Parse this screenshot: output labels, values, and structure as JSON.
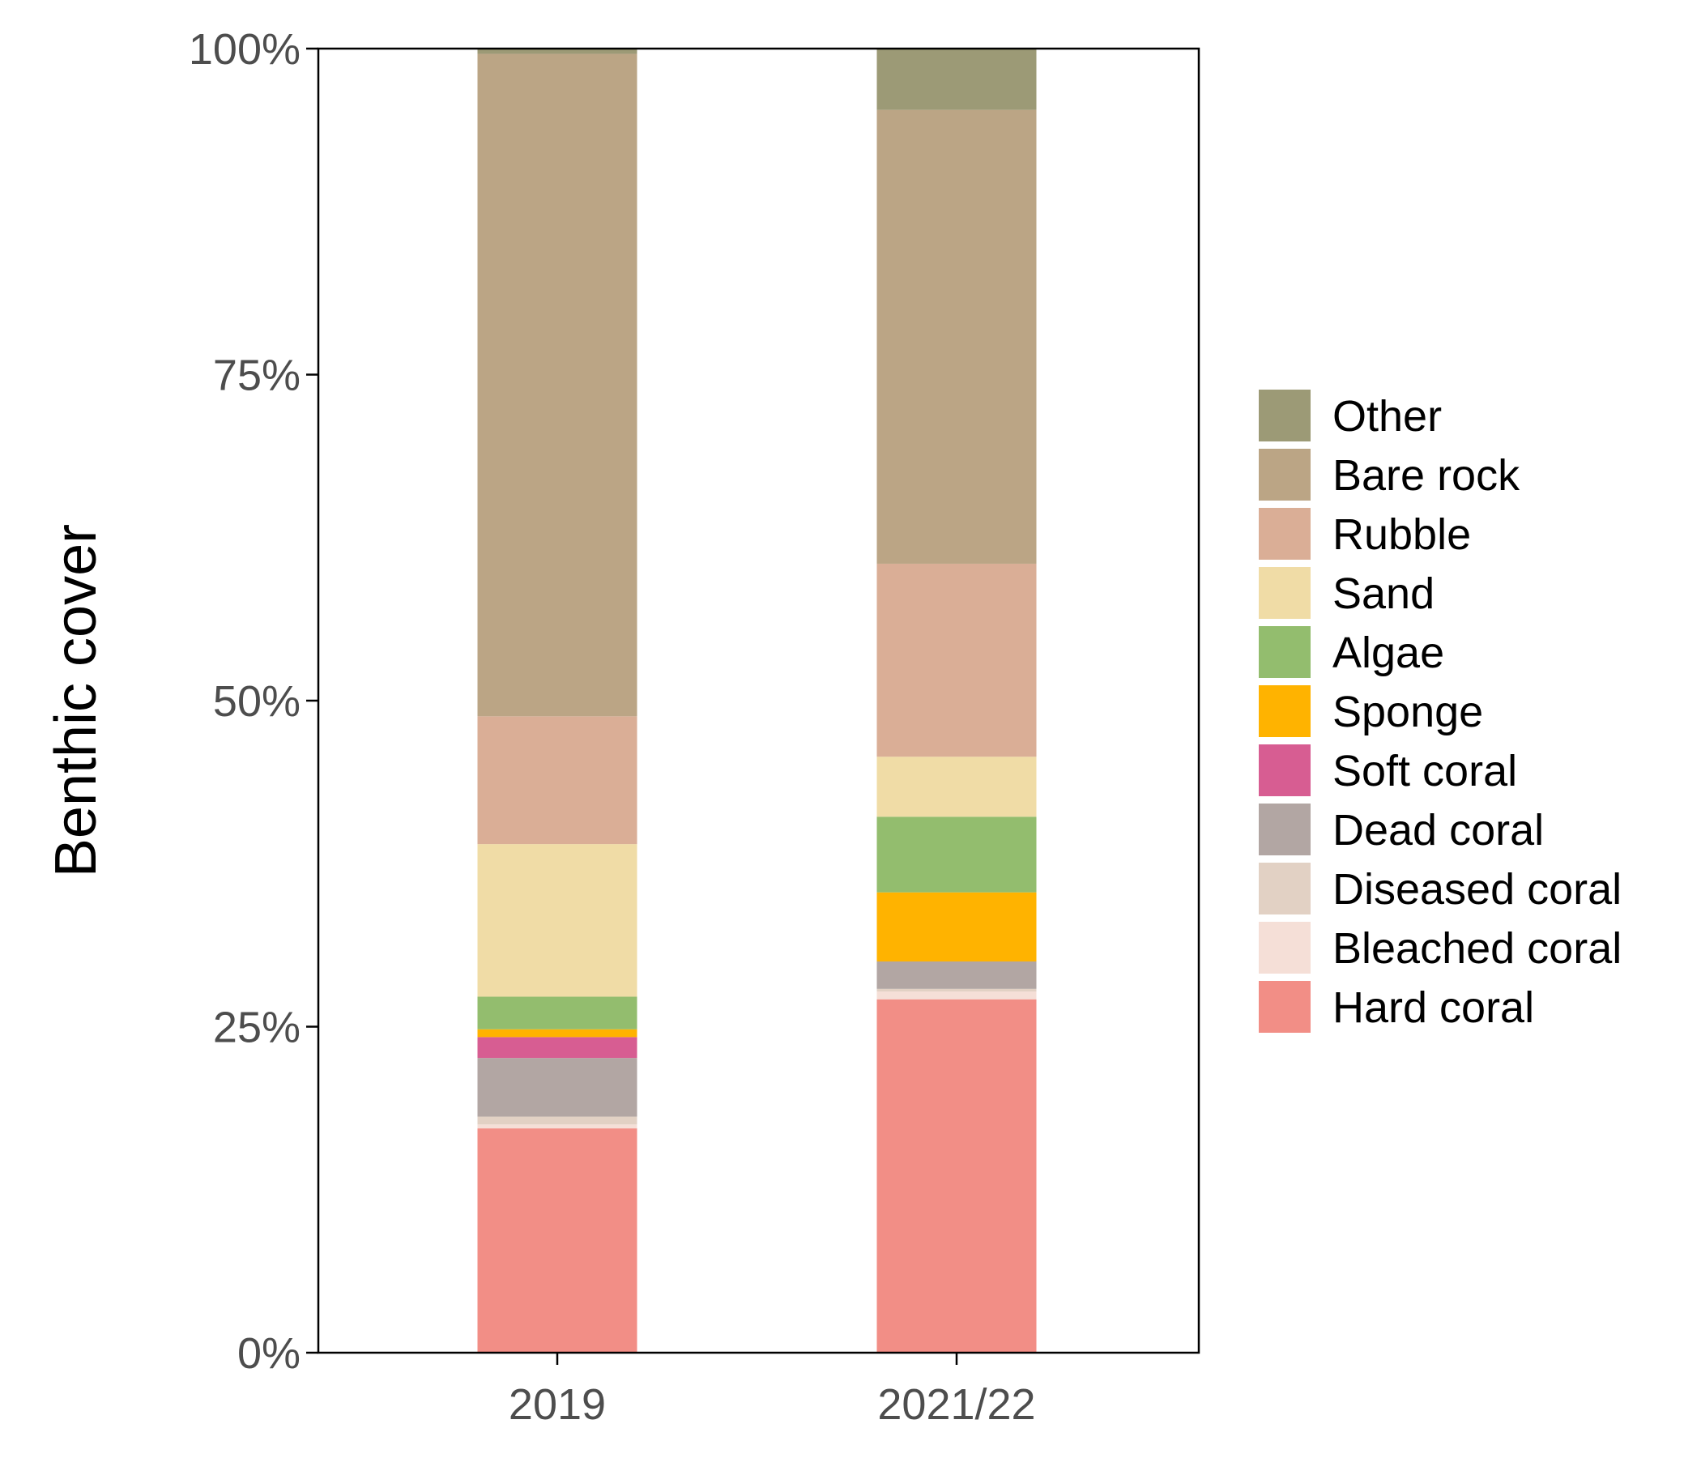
{
  "chart_data": {
    "type": "bar",
    "stacked": true,
    "title": "",
    "xlabel": "",
    "ylabel": "Benthic cover",
    "ylim": [
      0,
      100
    ],
    "y_ticks": [
      {
        "value": 0,
        "label": "0%"
      },
      {
        "value": 25,
        "label": "25%"
      },
      {
        "value": 50,
        "label": "50%"
      },
      {
        "value": 75,
        "label": "75%"
      },
      {
        "value": 100,
        "label": "100%"
      }
    ],
    "categories": [
      "2019",
      "2021/22"
    ],
    "series": [
      {
        "name": "Hard coral",
        "color": "#F28E86",
        "values": [
          17.2,
          27.1
        ]
      },
      {
        "name": "Bleached coral",
        "color": "#F5DFD7",
        "values": [
          0.3,
          0.6
        ]
      },
      {
        "name": "Diseased coral",
        "color": "#E2D1C4",
        "values": [
          0.6,
          0.2
        ]
      },
      {
        "name": "Dead coral",
        "color": "#B2A6A3",
        "values": [
          4.5,
          2.1
        ]
      },
      {
        "name": "Soft coral",
        "color": "#D75D92",
        "values": [
          1.6,
          0.0
        ]
      },
      {
        "name": "Sponge",
        "color": "#FFB300",
        "values": [
          0.6,
          5.3
        ]
      },
      {
        "name": "Algae",
        "color": "#93BD6E",
        "values": [
          2.5,
          5.8
        ]
      },
      {
        "name": "Sand",
        "color": "#F0DCA6",
        "values": [
          11.7,
          4.6
        ]
      },
      {
        "name": "Rubble",
        "color": "#DAAE96",
        "values": [
          9.8,
          14.8
        ]
      },
      {
        "name": "Bare rock",
        "color": "#BBA585",
        "values": [
          50.8,
          34.8
        ]
      },
      {
        "name": "Other",
        "color": "#9C9A76",
        "values": [
          0.4,
          4.7
        ]
      }
    ],
    "legend": {
      "placement": "right",
      "order": [
        "Other",
        "Bare rock",
        "Rubble",
        "Sand",
        "Algae",
        "Sponge",
        "Soft coral",
        "Dead coral",
        "Diseased coral",
        "Bleached coral",
        "Hard coral"
      ]
    }
  }
}
